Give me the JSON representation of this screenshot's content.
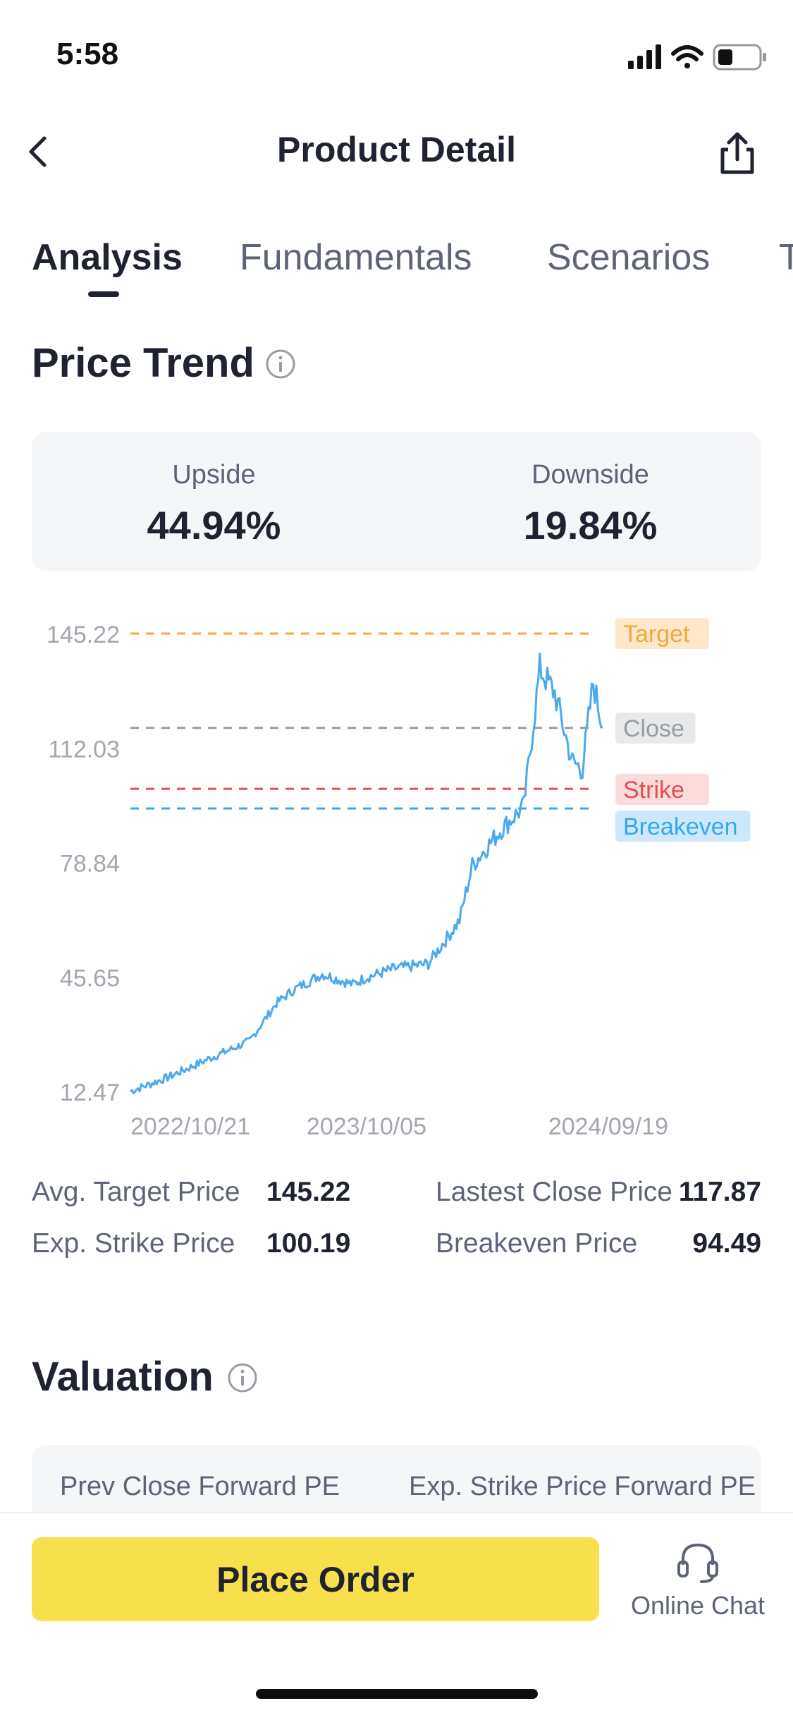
{
  "status_bar": {
    "time": "5:58",
    "icons": [
      "signal-icon",
      "wifi-icon",
      "battery-icon"
    ]
  },
  "header": {
    "title": "Product Detail",
    "back_icon": "chevron-left-icon",
    "share_icon": "share-icon"
  },
  "tabs": [
    {
      "label": "Analysis",
      "active": true
    },
    {
      "label": "Fundamentals",
      "active": false
    },
    {
      "label": "Scenarios",
      "active": false
    },
    {
      "label": "T",
      "active": false
    }
  ],
  "price_trend": {
    "title": "Price Trend",
    "upside_label": "Upside",
    "upside_value": "44.94%",
    "downside_label": "Downside",
    "downside_value": "19.84%"
  },
  "chart_data": {
    "type": "line",
    "y_ticks": [
      "145.22",
      "112.03",
      "78.84",
      "45.65",
      "12.47"
    ],
    "x_ticks": [
      "2022/10/21",
      "2023/10/05",
      "2024/09/19"
    ],
    "ylim": [
      12.47,
      145.22
    ],
    "series": [
      {
        "x": [
          "2022/10/21",
          "2022/12/15",
          "2023/02/15",
          "2023/04/15",
          "2023/05/25",
          "2023/06/20",
          "2023/08/01",
          "2023/09/15",
          "2023/10/05",
          "2023/11/15",
          "2024/01/05",
          "2024/02/20",
          "2024/03/10",
          "2024/04/20",
          "2024/05/25",
          "2024/06/18",
          "2024/07/10",
          "2024/08/05",
          "2024/08/20",
          "2024/09/05",
          "2024/09/19"
        ],
        "y": [
          12.5,
          16.5,
          22.0,
          27.0,
          38.0,
          42.0,
          46.5,
          43.5,
          45.5,
          48.0,
          49.5,
          62.0,
          78.0,
          88.0,
          95.0,
          135.0,
          128.0,
          108.0,
          106.0,
          131.0,
          118.0
        ]
      }
    ],
    "reference_lines": [
      {
        "label": "Target",
        "value": 145.22,
        "color": "#f4a93a",
        "bg": "#fde8cc"
      },
      {
        "label": "Close",
        "value": 117.87,
        "color": "#9a9ca3",
        "bg": "#e8e9eb"
      },
      {
        "label": "Strike",
        "value": 100.19,
        "color": "#e84c4c",
        "bg": "#fbdcdc"
      },
      {
        "label": "Breakeven",
        "value": 94.49,
        "color": "#35a8f0",
        "bg": "#cde8fb"
      }
    ],
    "line_color": "#4ba9ee",
    "grid": false
  },
  "price_stats": [
    {
      "label": "Avg. Target Price",
      "value": "145.22"
    },
    {
      "label": "Lastest Close Price",
      "value": "117.87"
    },
    {
      "label": "Exp. Strike Price",
      "value": "100.19"
    },
    {
      "label": "Breakeven Price",
      "value": "94.49"
    }
  ],
  "valuation": {
    "title": "Valuation",
    "col1_label": "Prev Close Forward PE",
    "col2_label": "Exp. Strike Price Forward PE"
  },
  "bottom": {
    "place_order_label": "Place Order",
    "chat_label": "Online Chat",
    "chat_icon": "headset-icon",
    "accent": "#f8e04c"
  }
}
